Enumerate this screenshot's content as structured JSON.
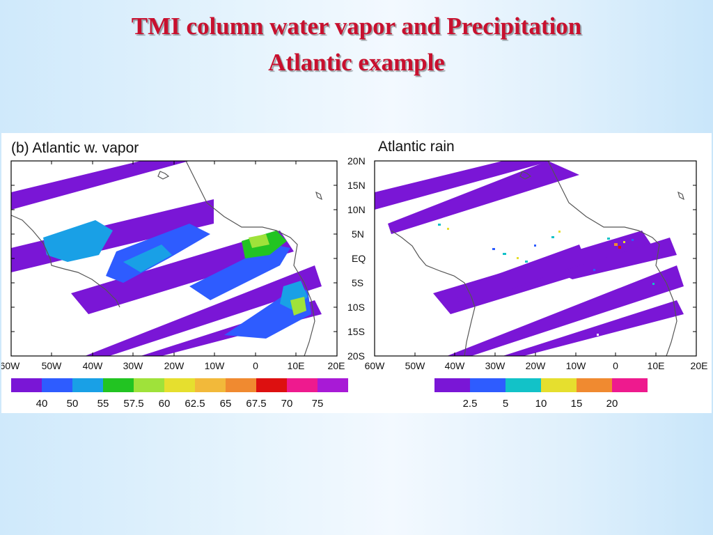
{
  "slide": {
    "title_line1": "TMI column water vapor and Precipitation",
    "title_line2": "Atlantic example"
  },
  "maps": [
    {
      "title": "(b) Atlantic w. vapor",
      "colorbar": {
        "colors": [
          "#7a16d6",
          "#2e5cff",
          "#19a0e6",
          "#22c422",
          "#9fe23a",
          "#e6df2e",
          "#f2b93a",
          "#f08a30",
          "#dd1010",
          "#ee1a8e",
          "#a81ad6"
        ],
        "labels": [
          "40",
          "50",
          "55",
          "57.5",
          "60",
          "62.5",
          "65",
          "67.5",
          "70",
          "75"
        ]
      }
    },
    {
      "title": "Atlantic rain",
      "colorbar": {
        "colors": [
          "#7a16d6",
          "#2e5cff",
          "#12c2c8",
          "#e6df2e",
          "#f08a30",
          "#ee1a8e"
        ],
        "labels": [
          "2.5",
          "5",
          "10",
          "15",
          "20"
        ]
      }
    }
  ],
  "axes": {
    "lon_labels": [
      "60W",
      "50W",
      "40W",
      "30W",
      "20W",
      "10W",
      "0",
      "10E",
      "20E"
    ],
    "lat_labels": [
      "20N",
      "15N",
      "10N",
      "5N",
      "EQ",
      "5S",
      "10S",
      "15S",
      "20S"
    ]
  },
  "colors": {
    "title": "#c8102e",
    "swath": "#7a16d6",
    "coast": "#555555"
  }
}
